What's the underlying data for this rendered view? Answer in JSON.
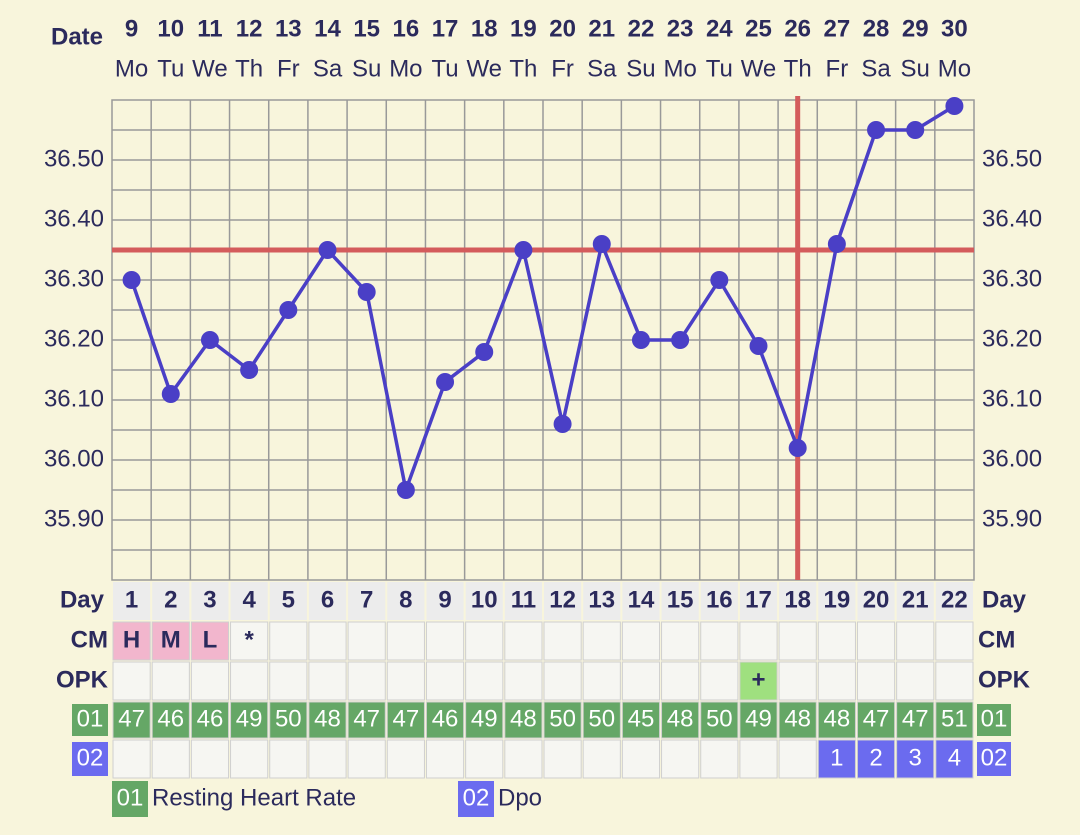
{
  "chart_data": {
    "type": "line",
    "x_label": "Date",
    "dates": [
      9,
      10,
      11,
      12,
      13,
      14,
      15,
      16,
      17,
      18,
      19,
      20,
      21,
      22,
      23,
      24,
      25,
      26,
      27,
      28,
      29,
      30
    ],
    "weekdays": [
      "Mo",
      "Tu",
      "We",
      "Th",
      "Fr",
      "Sa",
      "Su",
      "Mo",
      "Tu",
      "We",
      "Th",
      "Fr",
      "Sa",
      "Su",
      "Mo",
      "Tu",
      "We",
      "Th",
      "Fr",
      "Sa",
      "Su",
      "Mo"
    ],
    "values": [
      36.3,
      36.11,
      36.2,
      36.15,
      36.25,
      36.35,
      36.28,
      35.95,
      36.13,
      36.18,
      36.35,
      36.06,
      36.36,
      36.2,
      36.2,
      36.3,
      36.19,
      36.02,
      36.36,
      36.55,
      36.55,
      36.59
    ],
    "color": "#4a3fc6",
    "coverline": 36.35,
    "ovulation_day": 18,
    "marker_color": "#d45c5c",
    "ylim": [
      35.8,
      36.6
    ],
    "yticks": [
      {
        "value": 35.9,
        "label": "35.90"
      },
      {
        "value": 36.0,
        "label": "36.00"
      },
      {
        "value": 36.1,
        "label": "36.10"
      },
      {
        "value": 36.2,
        "label": "36.20"
      },
      {
        "value": 36.3,
        "label": "36.30"
      },
      {
        "value": 36.4,
        "label": "36.40"
      },
      {
        "value": 36.5,
        "label": "36.50"
      }
    ],
    "minor_grid": [
      35.85,
      35.95,
      36.05,
      36.15,
      36.25,
      36.35,
      36.45,
      36.55
    ],
    "grid": true,
    "table": {
      "day_label": "Day",
      "days": [
        1,
        2,
        3,
        4,
        5,
        6,
        7,
        8,
        9,
        10,
        11,
        12,
        13,
        14,
        15,
        16,
        17,
        18,
        19,
        20,
        21,
        22
      ],
      "rows": [
        {
          "label": "CM",
          "values": [
            "H",
            "M",
            "L",
            "*",
            null,
            null,
            null,
            null,
            null,
            null,
            null,
            null,
            null,
            null,
            null,
            null,
            null,
            null,
            null,
            null,
            null,
            null
          ],
          "cell_colors": [
            "#f2b6cd",
            "#f2b6cd",
            "#f2b6cd",
            null,
            null,
            null,
            null,
            null,
            null,
            null,
            null,
            null,
            null,
            null,
            null,
            null,
            null,
            null,
            null,
            null,
            null,
            null
          ]
        },
        {
          "label": "OPK",
          "values": [
            null,
            null,
            null,
            null,
            null,
            null,
            null,
            null,
            null,
            null,
            null,
            null,
            null,
            null,
            null,
            null,
            "+",
            null,
            null,
            null,
            null,
            null
          ],
          "cell_colors": [
            null,
            null,
            null,
            null,
            null,
            null,
            null,
            null,
            null,
            null,
            null,
            null,
            null,
            null,
            null,
            null,
            "#9fe07f",
            null,
            null,
            null,
            null,
            null
          ]
        },
        {
          "label": "01",
          "label_color": "#65a766",
          "values": [
            47,
            46,
            46,
            49,
            50,
            48,
            47,
            47,
            46,
            49,
            48,
            50,
            50,
            45,
            48,
            50,
            49,
            48,
            48,
            47,
            47,
            51
          ],
          "cell_colors": [
            "#65a766",
            "#65a766",
            "#65a766",
            "#65a766",
            "#65a766",
            "#65a766",
            "#65a766",
            "#65a766",
            "#65a766",
            "#65a766",
            "#65a766",
            "#65a766",
            "#65a766",
            "#65a766",
            "#65a766",
            "#65a766",
            "#65a766",
            "#65a766",
            "#65a766",
            "#65a766",
            "#65a766",
            "#65a766"
          ]
        },
        {
          "label": "02",
          "label_color": "#6b6bef",
          "values": [
            null,
            null,
            null,
            null,
            null,
            null,
            null,
            null,
            null,
            null,
            null,
            null,
            null,
            null,
            null,
            null,
            null,
            null,
            1,
            2,
            3,
            4
          ],
          "cell_colors": [
            null,
            null,
            null,
            null,
            null,
            null,
            null,
            null,
            null,
            null,
            null,
            null,
            null,
            null,
            null,
            null,
            null,
            null,
            "#6b6bef",
            "#6b6bef",
            "#6b6bef",
            "#6b6bef"
          ]
        }
      ]
    },
    "legend": [
      {
        "code": "01",
        "name": "Resting Heart Rate",
        "color": "#65a766"
      },
      {
        "code": "02",
        "name": "Dpo",
        "color": "#6b6bef"
      }
    ]
  }
}
